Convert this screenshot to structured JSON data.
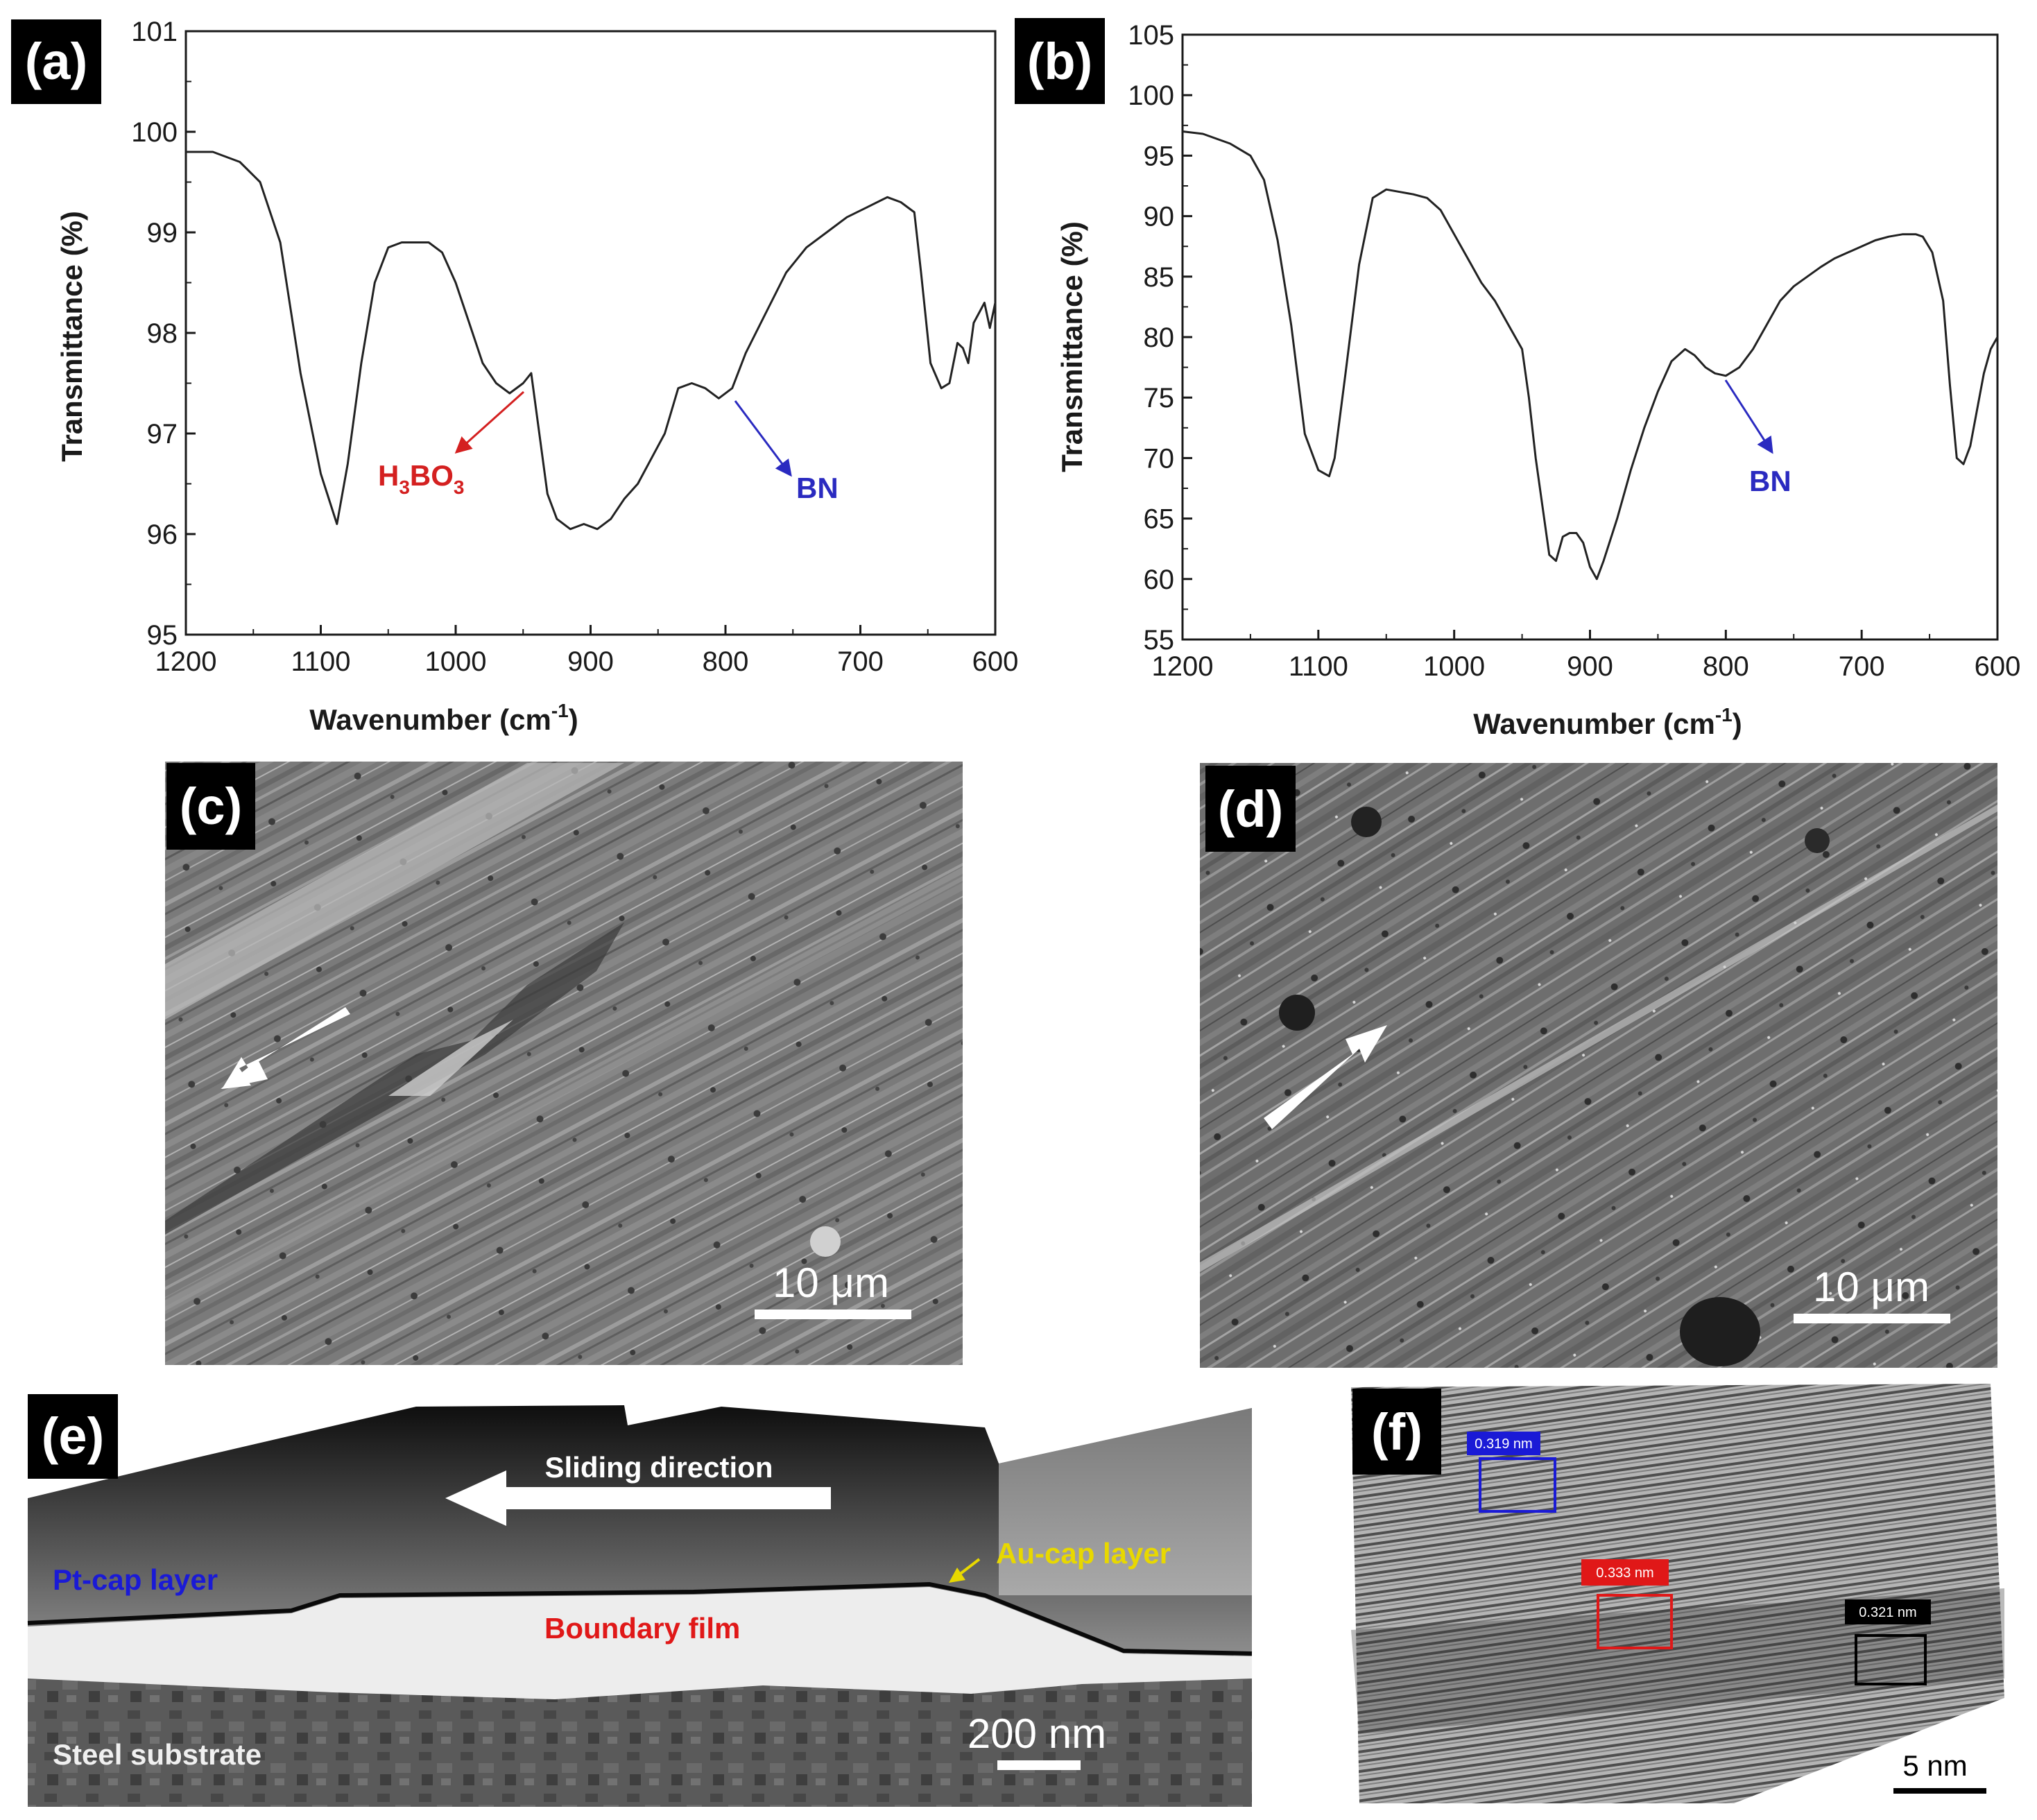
{
  "chart_data": [
    {
      "panel": "(a)",
      "type": "line",
      "xlabel": "Wavenumber (cm-1)",
      "ylabel": "Transmittance (%)",
      "xlim": [
        1200,
        600
      ],
      "ylim": [
        95,
        101
      ],
      "xticks": [
        1200,
        1100,
        1000,
        900,
        800,
        700,
        600
      ],
      "yticks": [
        95,
        96,
        97,
        98,
        99,
        100,
        101
      ],
      "series": [
        {
          "name": "spectrum",
          "x": [
            1200,
            1180,
            1160,
            1145,
            1130,
            1115,
            1100,
            1088,
            1080,
            1070,
            1060,
            1050,
            1040,
            1030,
            1020,
            1010,
            1000,
            990,
            980,
            970,
            960,
            950,
            944,
            938,
            932,
            925,
            915,
            905,
            895,
            885,
            875,
            865,
            855,
            845,
            835,
            825,
            815,
            805,
            795,
            785,
            770,
            755,
            740,
            725,
            710,
            695,
            680,
            670,
            660,
            655,
            648,
            640,
            634,
            628,
            624,
            620,
            616,
            612,
            608,
            604,
            600
          ],
          "y": [
            99.8,
            99.8,
            99.7,
            99.5,
            98.9,
            97.6,
            96.6,
            96.1,
            96.7,
            97.7,
            98.5,
            98.85,
            98.9,
            98.9,
            98.9,
            98.8,
            98.5,
            98.1,
            97.7,
            97.5,
            97.4,
            97.5,
            97.6,
            97.0,
            96.4,
            96.15,
            96.05,
            96.1,
            96.05,
            96.15,
            96.35,
            96.5,
            96.75,
            97.0,
            97.45,
            97.5,
            97.45,
            97.35,
            97.45,
            97.8,
            98.2,
            98.6,
            98.85,
            99.0,
            99.15,
            99.25,
            99.35,
            99.3,
            99.2,
            98.6,
            97.7,
            97.45,
            97.5,
            97.9,
            97.85,
            97.7,
            98.1,
            98.2,
            98.3,
            98.05,
            98.3
          ]
        }
      ],
      "annotations": [
        {
          "text": "H",
          "sub": "3",
          "text2": "BO",
          "sub2": "3",
          "color": "#d42020"
        },
        {
          "text": "BN",
          "color": "#2a2ac0"
        }
      ]
    },
    {
      "panel": "(b)",
      "type": "line",
      "xlabel": "Wavenumber (cm-1)",
      "ylabel": "Transmittance (%)",
      "xlim": [
        1200,
        600
      ],
      "ylim": [
        55,
        105
      ],
      "xticks": [
        1200,
        1100,
        1000,
        900,
        800,
        700,
        600
      ],
      "yticks": [
        55,
        60,
        65,
        70,
        75,
        80,
        85,
        90,
        95,
        100,
        105
      ],
      "series": [
        {
          "name": "spectrum",
          "x": [
            1200,
            1185,
            1165,
            1150,
            1140,
            1130,
            1120,
            1110,
            1100,
            1092,
            1088,
            1080,
            1070,
            1060,
            1050,
            1040,
            1030,
            1020,
            1010,
            1000,
            990,
            980,
            970,
            960,
            950,
            945,
            940,
            935,
            930,
            925,
            920,
            915,
            910,
            905,
            900,
            895,
            890,
            880,
            870,
            860,
            850,
            840,
            830,
            823,
            815,
            808,
            800,
            790,
            780,
            770,
            760,
            750,
            740,
            730,
            720,
            710,
            700,
            690,
            680,
            670,
            660,
            655,
            648,
            640,
            635,
            630,
            625,
            620,
            615,
            610,
            605,
            600
          ],
          "y": [
            97,
            96.8,
            96,
            95,
            93,
            88,
            81,
            72,
            69,
            68.5,
            70,
            77,
            86,
            91.5,
            92.2,
            92,
            91.8,
            91.5,
            90.5,
            88.5,
            86.5,
            84.5,
            83,
            81,
            79,
            75,
            70,
            66,
            62,
            61.5,
            63.5,
            63.8,
            63.8,
            63,
            61,
            60,
            61.5,
            65,
            69,
            72.5,
            75.5,
            78,
            79,
            78.5,
            77.5,
            77,
            76.8,
            77.5,
            79,
            81,
            83,
            84.2,
            85,
            85.8,
            86.5,
            87,
            87.5,
            88,
            88.3,
            88.5,
            88.5,
            88.3,
            87,
            83,
            76,
            70,
            69.5,
            71,
            74,
            77,
            79,
            80
          ]
        }
      ],
      "annotations": [
        {
          "text": "BN",
          "color": "#2a2ac0"
        }
      ]
    }
  ],
  "panels": {
    "a": {
      "label": "(a)"
    },
    "b": {
      "label": "(b)"
    },
    "c": {
      "label": "(c)",
      "scale_bar": "10 μm"
    },
    "d": {
      "label": "(d)",
      "scale_bar": "10 μm"
    },
    "e": {
      "label": "(e)",
      "sliding_direction": "Sliding direction",
      "pt_cap": "Pt-cap layer",
      "au_cap": "Au-cap layer",
      "boundary_film": "Boundary  film",
      "steel": "Steel substrate",
      "scale_bar": "200 nm"
    },
    "f": {
      "label": "(f)",
      "spacings": [
        "0.319 nm",
        "0.333 nm",
        "0.321 nm"
      ],
      "scale_bar": "5 nm"
    }
  },
  "colors": {
    "h3bo3": "#d42020",
    "bn": "#2a2ac0",
    "pt_cap": "#1a1ad6",
    "au_cap": "#e8d800",
    "boundary": "#e01818",
    "box_blue": "#1a1ad6",
    "box_red": "#e01818",
    "box_black": "#000000"
  }
}
